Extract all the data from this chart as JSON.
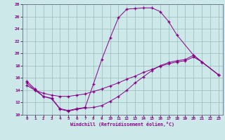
{
  "xlabel": "Windchill (Refroidissement éolien,°C)",
  "background_color": "#cce8e8",
  "line_color": "#880088",
  "grid_color": "#99bbbb",
  "xlim": [
    -0.5,
    23.5
  ],
  "ylim": [
    10,
    28
  ],
  "xticks": [
    0,
    1,
    2,
    3,
    4,
    5,
    6,
    7,
    8,
    9,
    10,
    11,
    12,
    13,
    14,
    15,
    16,
    17,
    18,
    19,
    20,
    21,
    22,
    23
  ],
  "yticks": [
    10,
    12,
    14,
    16,
    18,
    20,
    22,
    24,
    26,
    28
  ],
  "curve1_x": [
    0,
    1,
    2,
    3,
    4,
    5,
    6,
    7,
    8,
    9,
    10,
    11,
    12,
    13,
    14,
    15,
    16,
    17,
    18,
    20,
    21,
    23
  ],
  "curve1_y": [
    15.5,
    14.2,
    13.0,
    12.7,
    11.0,
    10.7,
    11.0,
    11.2,
    15.0,
    19.0,
    22.5,
    25.8,
    27.2,
    27.3,
    27.4,
    27.4,
    26.8,
    25.2,
    23.0,
    19.7,
    18.6,
    16.5
  ],
  "curve2_x": [
    0,
    1,
    2,
    3,
    4,
    5,
    6,
    7,
    8,
    9,
    10,
    11,
    12,
    13,
    14,
    15,
    16,
    17,
    18,
    19,
    20,
    21,
    23
  ],
  "curve2_y": [
    15.2,
    14.0,
    13.0,
    12.6,
    10.9,
    10.6,
    10.9,
    11.1,
    11.2,
    11.5,
    12.2,
    13.0,
    14.0,
    15.2,
    16.2,
    17.2,
    18.0,
    18.5,
    18.8,
    19.0,
    19.7,
    18.6,
    16.5
  ],
  "curve3_x": [
    0,
    1,
    2,
    3,
    4,
    5,
    6,
    7,
    8,
    9,
    10,
    11,
    12,
    13,
    14,
    15,
    16,
    17,
    18,
    19,
    20,
    21,
    23
  ],
  "curve3_y": [
    14.8,
    14.0,
    13.5,
    13.2,
    13.0,
    13.0,
    13.2,
    13.4,
    13.8,
    14.2,
    14.7,
    15.2,
    15.8,
    16.3,
    16.9,
    17.4,
    17.9,
    18.3,
    18.6,
    18.8,
    19.4,
    18.6,
    16.5
  ]
}
